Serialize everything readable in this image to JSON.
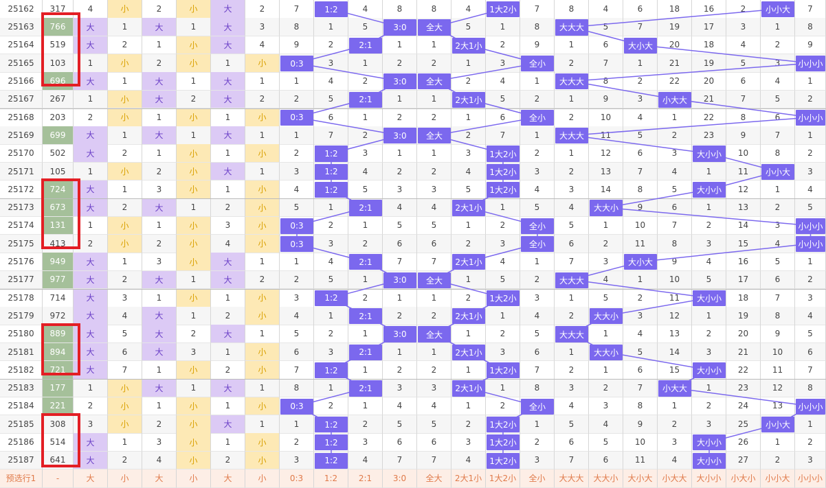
{
  "rows": [
    {
      "id": "25162",
      "num": "317",
      "c1": "4",
      "c2": "小",
      "c3": "2",
      "c4": "小",
      "c5": "大",
      "c6": "2",
      "c7": "7",
      "c8": "1:2",
      "c9": "4",
      "c10": "8",
      "c11": "8",
      "c12": "4",
      "c13": "1大2小",
      "c14": "7",
      "c15": "8",
      "c16": "4",
      "c17": "6",
      "c18": "18",
      "c19": "16",
      "c20": "2",
      "c21": "小小大",
      "c22": "7"
    },
    {
      "id": "25163",
      "num": "766",
      "c1": "大",
      "c2": "1",
      "c3": "大",
      "c4": "1",
      "c5": "大",
      "c6": "3",
      "c7": "8",
      "c8": "1",
      "c9": "5",
      "c10": "3:0",
      "c11": "全大",
      "c12": "5",
      "c13": "1",
      "c14": "8",
      "c15": "大大大",
      "c16": "5",
      "c17": "7",
      "c18": "19",
      "c19": "17",
      "c20": "3",
      "c21": "1",
      "c22": "8"
    },
    {
      "id": "25164",
      "num": "519",
      "c1": "大",
      "c2": "2",
      "c3": "1",
      "c4": "小",
      "c5": "大",
      "c6": "4",
      "c7": "9",
      "c8": "2",
      "c9": "2:1",
      "c10": "1",
      "c11": "1",
      "c12": "2大1小",
      "c13": "2",
      "c14": "9",
      "c15": "1",
      "c16": "6",
      "c17": "大小大",
      "c18": "20",
      "c19": "18",
      "c20": "4",
      "c21": "2",
      "c22": "9"
    },
    {
      "id": "25165",
      "num": "103",
      "c1": "1",
      "c2": "小",
      "c3": "2",
      "c4": "小",
      "c5": "1",
      "c6": "小",
      "c7": "0:3",
      "c8": "3",
      "c9": "1",
      "c10": "2",
      "c11": "2",
      "c12": "1",
      "c13": "3",
      "c14": "全小",
      "c15": "2",
      "c16": "7",
      "c17": "1",
      "c18": "21",
      "c19": "19",
      "c20": "5",
      "c21": "3",
      "c22": "小小小"
    },
    {
      "id": "25166",
      "num": "696",
      "c1": "大",
      "c2": "1",
      "c3": "大",
      "c4": "1",
      "c5": "大",
      "c6": "1",
      "c7": "1",
      "c8": "4",
      "c9": "2",
      "c10": "3:0",
      "c11": "全大",
      "c12": "2",
      "c13": "4",
      "c14": "1",
      "c15": "大大大",
      "c16": "8",
      "c17": "2",
      "c18": "22",
      "c19": "20",
      "c20": "6",
      "c21": "4",
      "c22": "1"
    },
    {
      "id": "25167",
      "num": "267",
      "c1": "1",
      "c2": "小",
      "c3": "大",
      "c4": "2",
      "c5": "大",
      "c6": "2",
      "c7": "2",
      "c8": "5",
      "c9": "2:1",
      "c10": "1",
      "c11": "1",
      "c12": "2大1小",
      "c13": "5",
      "c14": "2",
      "c15": "1",
      "c16": "9",
      "c17": "3",
      "c18": "小大大",
      "c19": "21",
      "c20": "7",
      "c21": "5",
      "c22": "2"
    },
    {
      "id": "25168",
      "num": "203",
      "c1": "2",
      "c2": "小",
      "c3": "1",
      "c4": "小",
      "c5": "1",
      "c6": "小",
      "c7": "0:3",
      "c8": "6",
      "c9": "1",
      "c10": "2",
      "c11": "2",
      "c12": "1",
      "c13": "6",
      "c14": "全小",
      "c15": "2",
      "c16": "10",
      "c17": "4",
      "c18": "1",
      "c19": "22",
      "c20": "8",
      "c21": "6",
      "c22": "小小小"
    },
    {
      "id": "25169",
      "num": "699",
      "c1": "大",
      "c2": "1",
      "c3": "大",
      "c4": "1",
      "c5": "大",
      "c6": "1",
      "c7": "1",
      "c8": "7",
      "c9": "2",
      "c10": "3:0",
      "c11": "全大",
      "c12": "2",
      "c13": "7",
      "c14": "1",
      "c15": "大大大",
      "c16": "11",
      "c17": "5",
      "c18": "2",
      "c19": "23",
      "c20": "9",
      "c21": "7",
      "c22": "1"
    },
    {
      "id": "25170",
      "num": "502",
      "c1": "大",
      "c2": "2",
      "c3": "1",
      "c4": "小",
      "c5": "1",
      "c6": "小",
      "c7": "2",
      "c8": "1:2",
      "c9": "3",
      "c10": "1",
      "c11": "1",
      "c12": "3",
      "c13": "1大2小",
      "c14": "2",
      "c15": "1",
      "c16": "12",
      "c17": "6",
      "c18": "3",
      "c19": "大小小",
      "c20": "10",
      "c21": "8",
      "c22": "2"
    },
    {
      "id": "25171",
      "num": "105",
      "c1": "1",
      "c2": "小",
      "c3": "2",
      "c4": "小",
      "c5": "大",
      "c6": "1",
      "c7": "3",
      "c8": "1:2",
      "c9": "4",
      "c10": "2",
      "c11": "2",
      "c12": "4",
      "c13": "1大2小",
      "c14": "3",
      "c15": "2",
      "c16": "13",
      "c17": "7",
      "c18": "4",
      "c19": "1",
      "c20": "11",
      "c21": "小小大",
      "c22": "3"
    },
    {
      "id": "25172",
      "num": "724",
      "c1": "大",
      "c2": "1",
      "c3": "3",
      "c4": "小",
      "c5": "1",
      "c6": "小",
      "c7": "4",
      "c8": "1:2",
      "c9": "5",
      "c10": "3",
      "c11": "3",
      "c12": "5",
      "c13": "1大2小",
      "c14": "4",
      "c15": "3",
      "c16": "14",
      "c17": "8",
      "c18": "5",
      "c19": "大小小",
      "c20": "12",
      "c21": "1",
      "c22": "4"
    },
    {
      "id": "25173",
      "num": "673",
      "c1": "大",
      "c2": "2",
      "c3": "大",
      "c4": "1",
      "c5": "2",
      "c6": "小",
      "c7": "5",
      "c8": "1",
      "c9": "2:1",
      "c10": "4",
      "c11": "4",
      "c12": "2大1小",
      "c13": "1",
      "c14": "5",
      "c15": "4",
      "c16": "大大小",
      "c17": "9",
      "c18": "6",
      "c19": "1",
      "c20": "13",
      "c21": "2",
      "c22": "5"
    },
    {
      "id": "25174",
      "num": "131",
      "c1": "1",
      "c2": "小",
      "c3": "1",
      "c4": "小",
      "c5": "3",
      "c6": "小",
      "c7": "0:3",
      "c8": "2",
      "c9": "1",
      "c10": "5",
      "c11": "5",
      "c12": "1",
      "c13": "2",
      "c14": "全小",
      "c15": "5",
      "c16": "1",
      "c17": "10",
      "c18": "7",
      "c19": "2",
      "c20": "14",
      "c21": "3",
      "c22": "小小小"
    },
    {
      "id": "25175",
      "num": "413",
      "c1": "2",
      "c2": "小",
      "c3": "2",
      "c4": "小",
      "c5": "4",
      "c6": "小",
      "c7": "0:3",
      "c8": "3",
      "c9": "2",
      "c10": "6",
      "c11": "6",
      "c12": "2",
      "c13": "3",
      "c14": "全小",
      "c15": "6",
      "c16": "2",
      "c17": "11",
      "c18": "8",
      "c19": "3",
      "c20": "15",
      "c21": "4",
      "c22": "小小小"
    },
    {
      "id": "25176",
      "num": "949",
      "c1": "大",
      "c2": "1",
      "c3": "3",
      "c4": "小",
      "c5": "大",
      "c6": "1",
      "c7": "1",
      "c8": "4",
      "c9": "2:1",
      "c10": "7",
      "c11": "7",
      "c12": "2大1小",
      "c13": "4",
      "c14": "1",
      "c15": "7",
      "c16": "3",
      "c17": "大小大",
      "c18": "9",
      "c19": "4",
      "c20": "16",
      "c21": "5",
      "c22": "1"
    },
    {
      "id": "25177",
      "num": "977",
      "c1": "大",
      "c2": "2",
      "c3": "大",
      "c4": "1",
      "c5": "大",
      "c6": "2",
      "c7": "2",
      "c8": "5",
      "c9": "1",
      "c10": "3:0",
      "c11": "全大",
      "c12": "1",
      "c13": "5",
      "c14": "2",
      "c15": "大大大",
      "c16": "4",
      "c17": "1",
      "c18": "10",
      "c19": "5",
      "c20": "17",
      "c21": "6",
      "c22": "2"
    },
    {
      "id": "25178",
      "num": "714",
      "c1": "大",
      "c2": "3",
      "c3": "1",
      "c4": "小",
      "c5": "1",
      "c6": "小",
      "c7": "3",
      "c8": "1:2",
      "c9": "2",
      "c10": "1",
      "c11": "1",
      "c12": "2",
      "c13": "1大2小",
      "c14": "3",
      "c15": "1",
      "c16": "5",
      "c17": "2",
      "c18": "11",
      "c19": "大小小",
      "c20": "18",
      "c21": "7",
      "c22": "3"
    },
    {
      "id": "25179",
      "num": "972",
      "c1": "大",
      "c2": "4",
      "c3": "大",
      "c4": "1",
      "c5": "2",
      "c6": "小",
      "c7": "4",
      "c8": "1",
      "c9": "2:1",
      "c10": "2",
      "c11": "2",
      "c12": "2大1小",
      "c13": "1",
      "c14": "4",
      "c15": "2",
      "c16": "大大小",
      "c17": "3",
      "c18": "12",
      "c19": "1",
      "c20": "19",
      "c21": "8",
      "c22": "4"
    },
    {
      "id": "25180",
      "num": "889",
      "c1": "大",
      "c2": "5",
      "c3": "大",
      "c4": "2",
      "c5": "大",
      "c6": "1",
      "c7": "5",
      "c8": "2",
      "c9": "1",
      "c10": "3:0",
      "c11": "全大",
      "c12": "1",
      "c13": "2",
      "c14": "5",
      "c15": "大大大",
      "c16": "1",
      "c17": "4",
      "c18": "13",
      "c19": "2",
      "c20": "20",
      "c21": "9",
      "c22": "5"
    },
    {
      "id": "25181",
      "num": "894",
      "c1": "大",
      "c2": "6",
      "c3": "大",
      "c4": "3",
      "c5": "1",
      "c6": "小",
      "c7": "6",
      "c8": "3",
      "c9": "2:1",
      "c10": "1",
      "c11": "1",
      "c12": "2大1小",
      "c13": "3",
      "c14": "6",
      "c15": "1",
      "c16": "大大小",
      "c17": "5",
      "c18": "14",
      "c19": "3",
      "c20": "21",
      "c21": "10",
      "c22": "6"
    },
    {
      "id": "25182",
      "num": "721",
      "c1": "大",
      "c2": "7",
      "c3": "1",
      "c4": "小",
      "c5": "2",
      "c6": "小",
      "c7": "7",
      "c8": "1:2",
      "c9": "1",
      "c10": "2",
      "c11": "2",
      "c12": "1",
      "c13": "1大2小",
      "c14": "7",
      "c15": "2",
      "c16": "1",
      "c17": "6",
      "c18": "15",
      "c19": "大小小",
      "c20": "22",
      "c21": "11",
      "c22": "7"
    },
    {
      "id": "25183",
      "num": "177",
      "c1": "1",
      "c2": "小",
      "c3": "大",
      "c4": "1",
      "c5": "大",
      "c6": "1",
      "c7": "8",
      "c8": "1",
      "c9": "2:1",
      "c10": "3",
      "c11": "3",
      "c12": "2大1小",
      "c13": "1",
      "c14": "8",
      "c15": "3",
      "c16": "2",
      "c17": "7",
      "c18": "小大大",
      "c19": "1",
      "c20": "23",
      "c21": "12",
      "c22": "8"
    },
    {
      "id": "25184",
      "num": "221",
      "c1": "2",
      "c2": "小",
      "c3": "1",
      "c4": "小",
      "c5": "1",
      "c6": "小",
      "c7": "0:3",
      "c8": "2",
      "c9": "1",
      "c10": "4",
      "c11": "4",
      "c12": "1",
      "c13": "2",
      "c14": "全小",
      "c15": "4",
      "c16": "3",
      "c17": "8",
      "c18": "1",
      "c19": "2",
      "c20": "24",
      "c21": "13",
      "c22": "小小小"
    },
    {
      "id": "25185",
      "num": "308",
      "c1": "3",
      "c2": "小",
      "c3": "2",
      "c4": "小",
      "c5": "大",
      "c6": "1",
      "c7": "1",
      "c8": "1:2",
      "c9": "2",
      "c10": "5",
      "c11": "5",
      "c12": "2",
      "c13": "1大2小",
      "c14": "1",
      "c15": "5",
      "c16": "4",
      "c17": "9",
      "c18": "2",
      "c19": "3",
      "c20": "25",
      "c21": "小小大",
      "c22": "1"
    },
    {
      "id": "25186",
      "num": "514",
      "c1": "大",
      "c2": "1",
      "c3": "3",
      "c4": "小",
      "c5": "1",
      "c6": "小",
      "c7": "2",
      "c8": "1:2",
      "c9": "3",
      "c10": "6",
      "c11": "6",
      "c12": "3",
      "c13": "1大2小",
      "c14": "2",
      "c15": "6",
      "c16": "5",
      "c17": "10",
      "c18": "3",
      "c19": "大小小",
      "c20": "26",
      "c21": "1",
      "c22": "2"
    },
    {
      "id": "25187",
      "num": "641",
      "c1": "大",
      "c2": "2",
      "c3": "4",
      "c4": "小",
      "c5": "2",
      "c6": "小",
      "c7": "3",
      "c8": "1:2",
      "c9": "4",
      "c10": "7",
      "c11": "7",
      "c12": "4",
      "c13": "1大2小",
      "c14": "3",
      "c15": "7",
      "c16": "6",
      "c17": "11",
      "c18": "4",
      "c19": "大小小",
      "c20": "27",
      "c21": "2",
      "c22": "3"
    }
  ],
  "green_rows": [
    "25163",
    "25166",
    "25169",
    "25172",
    "25173",
    "25174",
    "25176",
    "25177",
    "25180",
    "25181",
    "25182",
    "25183",
    "25184"
  ],
  "footer": {
    "label": "预选行1",
    "dash": "-",
    "cells": [
      "大",
      "小",
      "大",
      "小",
      "大",
      "小",
      "0:3",
      "1:2",
      "2:1",
      "3:0",
      "全大",
      "2大1小",
      "1大2小",
      "全小",
      "大大大",
      "大大小",
      "大小大",
      "小大大",
      "大小小",
      "小大小",
      "小小大",
      "小小小"
    ]
  },
  "colors": {
    "purple": "#7b68ee",
    "green": "#a5c09a",
    "big": "#dccaf5",
    "small": "#fde9b5",
    "red": "#e31e24",
    "footer": "#fdeee6"
  }
}
